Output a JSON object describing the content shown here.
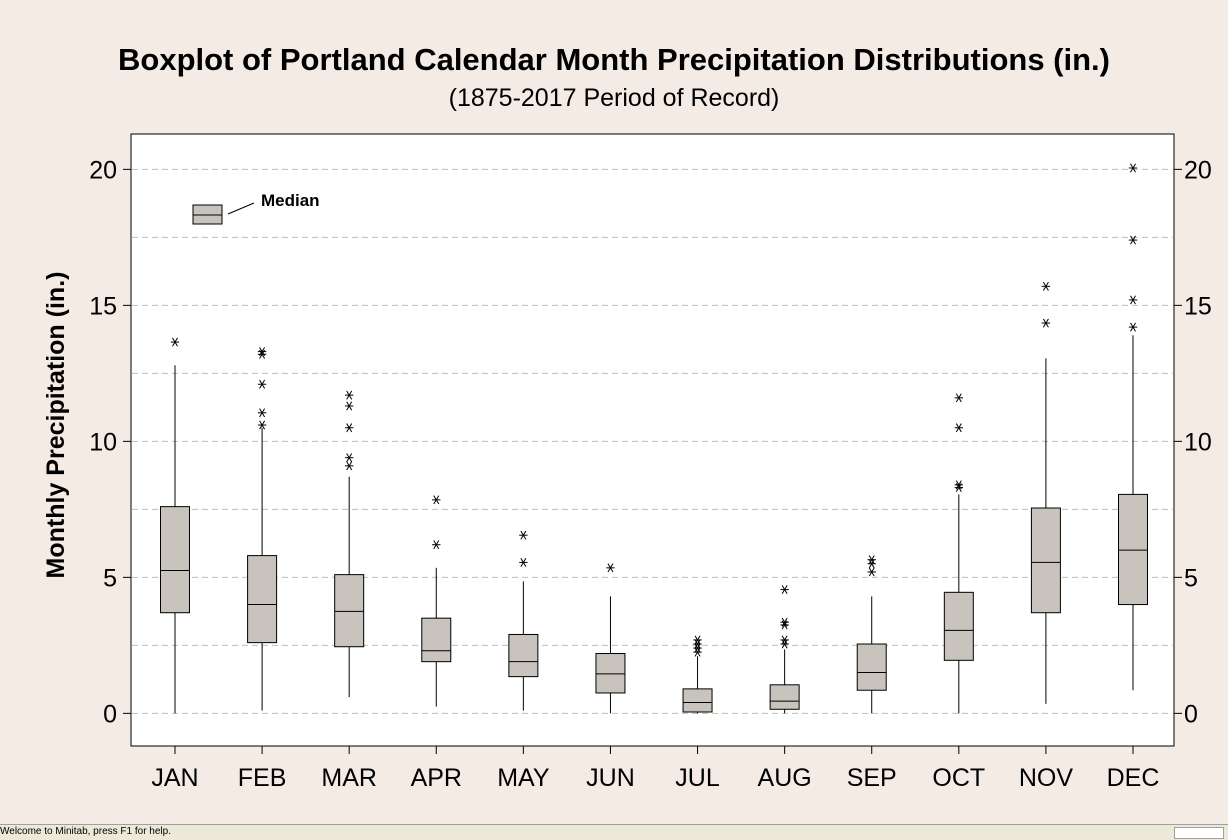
{
  "chart_data": {
    "type": "boxplot",
    "title": "Boxplot of Portland Calendar Month Precipitation Distributions (in.)",
    "subtitle": "(1875-2017 Period of Record)",
    "ylabel": "Monthly Precipitation (in.)",
    "xlabel": "",
    "ylim": [
      -1.2,
      21.3
    ],
    "yticks": [
      0,
      5,
      10,
      15,
      20
    ],
    "minor_gridlines": [
      2.5,
      7.5,
      12.5,
      17.5
    ],
    "grid": true,
    "legend": {
      "label": "Median",
      "placement": "top-left"
    },
    "colors": {
      "box_fill": "#c8c3bd",
      "stroke": "#000000",
      "grid": "#bfbfbf"
    },
    "categories": [
      "JAN",
      "FEB",
      "MAR",
      "APR",
      "MAY",
      "JUN",
      "JUL",
      "AUG",
      "SEP",
      "OCT",
      "NOV",
      "DEC"
    ],
    "boxes": [
      {
        "month": "JAN",
        "whisker_low": 0.0,
        "q1": 3.7,
        "median": 5.25,
        "q3": 7.6,
        "whisker_high": 12.8,
        "outliers": [
          13.65
        ]
      },
      {
        "month": "FEB",
        "whisker_low": 0.1,
        "q1": 2.6,
        "median": 4.0,
        "q3": 5.8,
        "whisker_high": 10.5,
        "outliers": [
          10.6,
          11.05,
          12.1,
          13.2,
          13.3
        ]
      },
      {
        "month": "MAR",
        "whisker_low": 0.6,
        "q1": 2.45,
        "median": 3.75,
        "q3": 5.1,
        "whisker_high": 8.7,
        "outliers": [
          9.1,
          9.4,
          10.5,
          11.3,
          11.7
        ]
      },
      {
        "month": "APR",
        "whisker_low": 0.25,
        "q1": 1.9,
        "median": 2.3,
        "q3": 3.5,
        "whisker_high": 5.35,
        "outliers": [
          6.2,
          7.85
        ]
      },
      {
        "month": "MAY",
        "whisker_low": 0.1,
        "q1": 1.35,
        "median": 1.9,
        "q3": 2.9,
        "whisker_high": 4.85,
        "outliers": [
          5.55,
          6.55
        ]
      },
      {
        "month": "JUN",
        "whisker_low": 0.0,
        "q1": 0.75,
        "median": 1.45,
        "q3": 2.2,
        "whisker_high": 4.3,
        "outliers": [
          5.35
        ]
      },
      {
        "month": "JUL",
        "whisker_low": 0.0,
        "q1": 0.05,
        "median": 0.4,
        "q3": 0.9,
        "whisker_high": 2.1,
        "outliers": [
          2.25,
          2.4,
          2.55,
          2.7
        ]
      },
      {
        "month": "AUG",
        "whisker_low": 0.0,
        "q1": 0.15,
        "median": 0.45,
        "q3": 1.05,
        "whisker_high": 2.35,
        "outliers": [
          2.55,
          2.7,
          3.25,
          3.35,
          4.55
        ]
      },
      {
        "month": "SEP",
        "whisker_low": 0.0,
        "q1": 0.85,
        "median": 1.5,
        "q3": 2.55,
        "whisker_high": 4.3,
        "outliers": [
          5.2,
          5.5,
          5.65
        ]
      },
      {
        "month": "OCT",
        "whisker_low": 0.0,
        "q1": 1.95,
        "median": 3.05,
        "q3": 4.45,
        "whisker_high": 8.05,
        "outliers": [
          8.3,
          8.4,
          10.5,
          11.6
        ]
      },
      {
        "month": "NOV",
        "whisker_low": 0.35,
        "q1": 3.7,
        "median": 5.55,
        "q3": 7.55,
        "whisker_high": 13.05,
        "outliers": [
          14.35,
          15.7
        ]
      },
      {
        "month": "DEC",
        "whisker_low": 0.85,
        "q1": 4.0,
        "median": 6.0,
        "q3": 8.05,
        "whisker_high": 13.9,
        "outliers": [
          14.2,
          15.2,
          17.4,
          20.05
        ]
      }
    ]
  },
  "status_bar": {
    "message": "Welcome to Minitab, press F1 for help."
  }
}
